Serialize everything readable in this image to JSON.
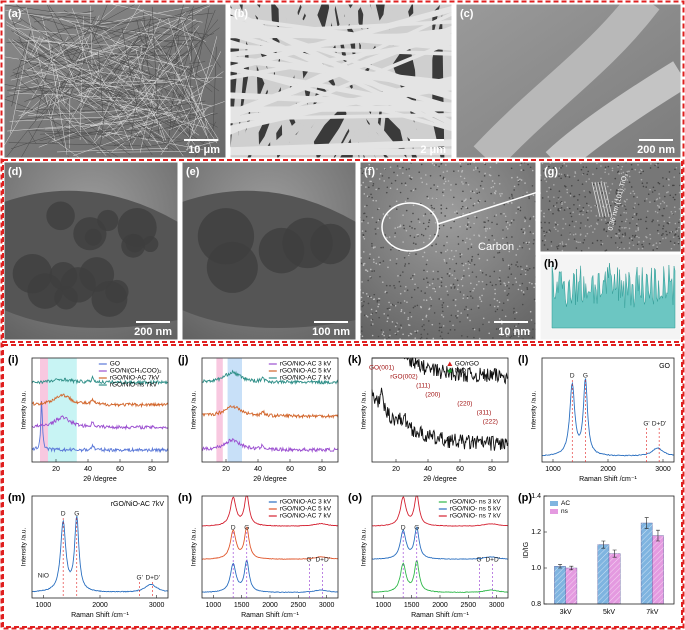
{
  "images": [
    {
      "label": "(a)",
      "scale_bar": "10 μm"
    },
    {
      "label": "(b)",
      "scale_bar": "2 μm"
    },
    {
      "label": "(c)",
      "scale_bar": "200 nm"
    },
    {
      "label": "(d)",
      "scale_bar": "200 nm"
    },
    {
      "label": "(e)",
      "scale_bar": "100 nm"
    },
    {
      "label": "(f)",
      "scale_bar": "10 nm",
      "annotation": "Carbon"
    },
    {
      "label": "(g)",
      "annotation": "0.36 nm (101) TiO₂"
    },
    {
      "label": "(h)"
    }
  ],
  "plots": [
    {
      "label": "(i)",
      "kind": "xrd",
      "xlabel": "2θ /degree",
      "ylabel": "Intensity /a.u.",
      "xlim": [
        5,
        90
      ],
      "xticks": [
        20,
        40,
        60,
        80
      ],
      "legend": [
        {
          "name": "GO",
          "color": "#5a78d8"
        },
        {
          "name": "GO/Ni(CH₃COO)₂",
          "color": "#9b4fd0"
        },
        {
          "name": "rGO/NiO-AC 7kV",
          "color": "#d2652a"
        },
        {
          "name": "rGO/NiO-ns 7kV",
          "color": "#2f8f88"
        }
      ]
    },
    {
      "label": "(j)",
      "kind": "xrd",
      "xlabel": "2θ /degree",
      "ylabel": "Intensity /a.u.",
      "xlim": [
        5,
        90
      ],
      "xticks": [
        20,
        40,
        60,
        80
      ],
      "legend": [
        {
          "name": "rGO/NiO-AC 3 kV",
          "color": "#9b4fd0"
        },
        {
          "name": "rGO/NiO-AC 5 kV",
          "color": "#d2652a"
        },
        {
          "name": "rGO/NiO-AC 7 kV",
          "color": "#2f8f88"
        }
      ]
    },
    {
      "label": "(k)",
      "kind": "xrd-k",
      "xlabel": "2θ /degree",
      "ylabel": "Intensity /a.u.",
      "xlim": [
        5,
        90
      ],
      "xticks": [
        20,
        40,
        60,
        80
      ],
      "legend": [
        {
          "name": "GO/rGO",
          "color": "#d62020"
        },
        {
          "name": "NiO",
          "color": "#1a8f2a"
        }
      ],
      "annotations": [
        "GO(001)",
        "rGO(002)",
        "(111)",
        "(200)",
        "(220)",
        "(311)",
        "(222)"
      ]
    },
    {
      "label": "(l)",
      "kind": "raman",
      "xlabel": "Raman Shift /cm⁻¹",
      "ylabel": "Intensity /a.u.",
      "xlim": [
        800,
        3200
      ],
      "xticks": [
        1000,
        2000,
        3000
      ],
      "title": "GO",
      "legend": [
        {
          "name": "GO",
          "color": "#2a6fc0"
        }
      ],
      "annotations": [
        "D",
        "G",
        "G'",
        "D+D'"
      ]
    },
    {
      "label": "(m)",
      "kind": "raman",
      "xlabel": "Raman Shift /cm⁻¹",
      "ylabel": "Intensity /a.u.",
      "xlim": [
        800,
        3200
      ],
      "xticks": [
        1000,
        2000,
        3000
      ],
      "title": "rGO/NiO-AC 7kV",
      "legend": [
        {
          "name": "rGO/NiO-AC 7kV",
          "color": "#2a6fc0"
        }
      ],
      "annotations": [
        "NiO",
        "D",
        "G",
        "G'",
        "D+D'"
      ]
    },
    {
      "label": "(n)",
      "kind": "raman3",
      "xlabel": "Raman Shift /cm⁻¹",
      "ylabel": "Intensity /a.u.",
      "xlim": [
        800,
        3200
      ],
      "xticks": [
        1000,
        1500,
        2000,
        2500,
        3000
      ],
      "legend": [
        {
          "name": "rGO/NiO-AC 3 kV",
          "color": "#2a6fc0"
        },
        {
          "name": "rGO/NiO-AC 5 kV",
          "color": "#e0552a"
        },
        {
          "name": "rGO/NiO-AC 7 kV",
          "color": "#d42030"
        }
      ],
      "annotations": [
        "D",
        "G",
        "G'",
        "D+D'"
      ]
    },
    {
      "label": "(o)",
      "kind": "raman3",
      "xlabel": "Raman Shift /cm⁻¹",
      "ylabel": "Intensity /a.u.",
      "xlim": [
        800,
        3200
      ],
      "xticks": [
        1000,
        1500,
        2000,
        2500,
        3000
      ],
      "legend": [
        {
          "name": "rGO/NiO- ns 3 kV",
          "color": "#2fb84a"
        },
        {
          "name": "rGO/NiO- ns 5 kV",
          "color": "#2a6fc0"
        },
        {
          "name": "rGO/NiO- ns 7 kV",
          "color": "#d42030"
        }
      ],
      "annotations": [
        "D",
        "G",
        "G'",
        "D+D'"
      ]
    }
  ],
  "chart_data": {
    "type": "bar",
    "label": "(p)",
    "ylabel": "ID/IG",
    "categories": [
      "3kV",
      "5kV",
      "7kV"
    ],
    "series": [
      {
        "name": "AC",
        "color": "#7fb4e0",
        "values": [
          1.01,
          1.13,
          1.25
        ],
        "errors": [
          0.01,
          0.02,
          0.03
        ]
      },
      {
        "name": "ns",
        "color": "#e49ae0",
        "values": [
          1.0,
          1.08,
          1.18
        ],
        "errors": [
          0.01,
          0.02,
          0.03
        ]
      }
    ],
    "ylim": [
      0.8,
      1.4
    ],
    "yticks": [
      0.8,
      {
        "value": 1,
        "label": "1.0"
      },
      1.2,
      1.4
    ]
  }
}
